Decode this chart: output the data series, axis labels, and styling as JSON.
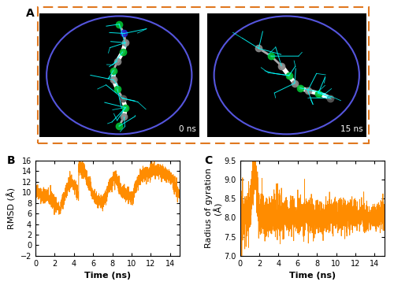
{
  "panel_A_label": "A",
  "panel_B_label": "B",
  "panel_C_label": "C",
  "line_color": "#FF8C00",
  "dashed_box_color": "#E07820",
  "bg_color": "#ffffff",
  "panel_A_bg": "#000000",
  "ellipse_color": "#5555DD",
  "rmsd_ylabel": "RMSD (Å)",
  "rmsd_xlabel": "Time (ns)",
  "rg_ylabel": "Radius of gyration\n(Å)",
  "rg_xlabel": "Time (ns)",
  "rmsd_ylim": [
    -2,
    16
  ],
  "rmsd_xlim": [
    0,
    15
  ],
  "rg_ylim": [
    7.0,
    9.5
  ],
  "rg_xlim": [
    0,
    15
  ],
  "rmsd_yticks": [
    -2,
    0,
    2,
    4,
    6,
    8,
    10,
    12,
    14,
    16
  ],
  "rmsd_xticks": [
    0,
    2,
    4,
    6,
    8,
    10,
    12,
    14
  ],
  "rg_yticks": [
    7.0,
    7.5,
    8.0,
    8.5,
    9.0,
    9.5
  ],
  "rg_xticks": [
    0,
    2,
    4,
    6,
    8,
    10,
    12,
    14
  ],
  "label_0ns": "0 ns",
  "label_15ns": "15 ns",
  "figsize": [
    5.0,
    3.67
  ],
  "dpi": 100
}
